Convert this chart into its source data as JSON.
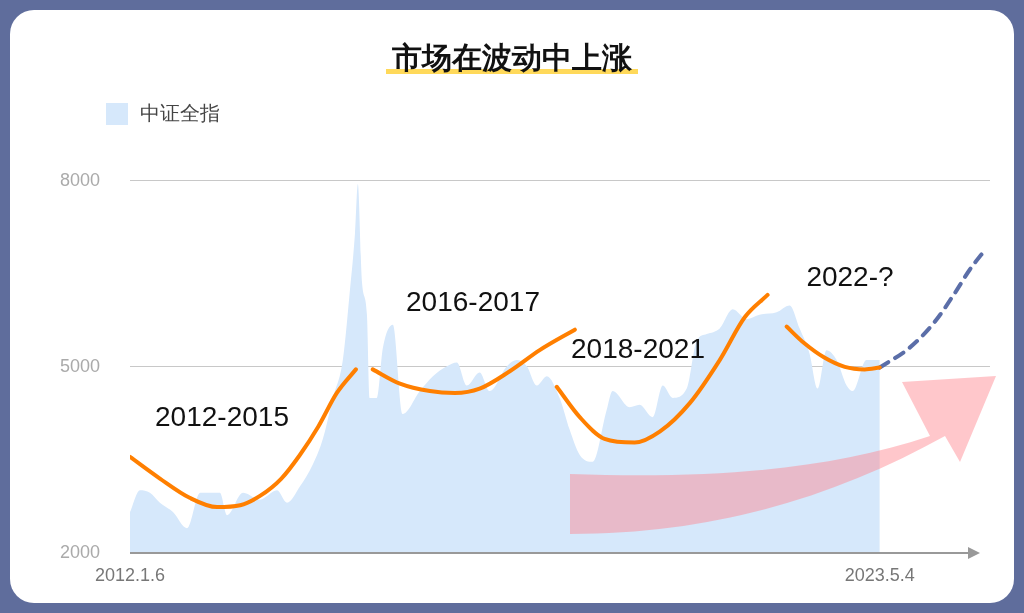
{
  "chart_data": {
    "type": "area",
    "title": "市场在波动中上涨",
    "xlim": [
      "2012-01-06",
      "2025-01"
    ],
    "xticks": [
      {
        "value": "2012-01-06",
        "label": "2012.1.6"
      },
      {
        "value": "2023-05-04",
        "label": "2023.5.4"
      }
    ],
    "ylim": [
      2000,
      8000
    ],
    "yticks": [
      2000,
      5000,
      8000
    ],
    "grid": "y",
    "legend": "top left",
    "marker": "none",
    "series": [
      {
        "name": "中证全指",
        "color": "#d6e8fb",
        "x": [
          "2012-01-06",
          "2012-03-01",
          "2012-04-25",
          "2012-06-19",
          "2012-08-30",
          "2012-11-15",
          "2013-01-27",
          "2013-05-16",
          "2013-06-24",
          "2013-09-20",
          "2013-12-23",
          "2014-03-27",
          "2014-05-21",
          "2014-07-31",
          "2014-10-11",
          "2014-12-05",
          "2015-01-29",
          "2015-03-25",
          "2015-05-03",
          "2015-05-31",
          "2015-06-16",
          "2015-07-08",
          "2015-08-05",
          "2015-08-21",
          "2015-09-28",
          "2015-11-01",
          "2015-12-26",
          "2016-02-19",
          "2016-05-23",
          "2016-08-03",
          "2016-10-19",
          "2016-12-13",
          "2017-02-06",
          "2017-04-18",
          "2017-06-12",
          "2017-09-15",
          "2017-11-08",
          "2018-01-03",
          "2018-02-27",
          "2018-04-23",
          "2018-07-03",
          "2018-08-27",
          "2018-10-22",
          "2019-01-02",
          "2019-03-19",
          "2019-04-21",
          "2019-07-24",
          "2019-09-17",
          "2019-11-28",
          "2020-01-23",
          "2020-03-18",
          "2020-06-03",
          "2020-07-28",
          "2020-09-22",
          "2020-12-02",
          "2021-02-12",
          "2021-04-30",
          "2021-07-10",
          "2021-10-12",
          "2021-12-23",
          "2022-02-16",
          "2022-04-11",
          "2022-05-26",
          "2022-07-14",
          "2022-09-08",
          "2022-11-02",
          "2022-12-05",
          "2023-02-20",
          "2023-05-04"
        ],
        "values": [
          2660,
          3010,
          2970,
          2810,
          2660,
          2400,
          2970,
          2970,
          2610,
          2970,
          2860,
          3010,
          2810,
          3070,
          3430,
          3840,
          4500,
          5110,
          6230,
          7150,
          7950,
          6390,
          5840,
          4500,
          4500,
          5310,
          5680,
          4240,
          4610,
          4850,
          5010,
          5070,
          4700,
          4910,
          4610,
          5010,
          5110,
          5010,
          4700,
          4850,
          4500,
          3990,
          3580,
          3470,
          4300,
          4610,
          4350,
          4390,
          4190,
          4700,
          4500,
          4650,
          5420,
          5530,
          5620,
          5930,
          5770,
          5840,
          5880,
          5990,
          5620,
          5220,
          4650,
          5270,
          5110,
          4700,
          4610,
          5110,
          5110
        ]
      },
      {
        "type": "line",
        "color": "#ff7f00",
        "x": [
          "2012-01-06",
          "2012-06-19",
          "2012-11-30",
          "2013-04-30",
          "2013-09-05",
          "2013-12-23",
          "2014-04-20",
          "2014-07-31",
          "2014-11-10",
          "2015-02-20",
          "2015-06-05"
        ],
        "values": [
          3550,
          3200,
          2890,
          2740,
          2770,
          2920,
          3200,
          3580,
          4040,
          4580,
          4960
        ]
      },
      {
        "type": "line",
        "color": "#ff7f00",
        "x": [
          "2015-09-06",
          "2016-02-03",
          "2016-07-17",
          "2016-12-02",
          "2017-04-18",
          "2017-10-01",
          "2018-03-15",
          "2018-09-25"
        ],
        "values": [
          4960,
          4730,
          4610,
          4580,
          4650,
          4930,
          5270,
          5600
        ]
      },
      {
        "type": "line",
        "color": "#ff7f00",
        "x": [
          "2018-06-17",
          "2018-10-22",
          "2019-03-08",
          "2019-08-21",
          "2020-01-08",
          "2020-06-21",
          "2020-12-02",
          "2021-04-19",
          "2021-08-23"
        ],
        "values": [
          4680,
          4190,
          3840,
          3780,
          3960,
          4420,
          5110,
          5800,
          6160
        ]
      },
      {
        "type": "line",
        "color": "#ff7f00",
        "x": [
          "2021-12-06",
          "2022-03-14",
          "2022-07-02",
          "2022-10-23",
          "2023-02-10",
          "2023-05-04"
        ],
        "values": [
          5650,
          5380,
          5150,
          5000,
          4960,
          4990
        ]
      },
      {
        "type": "line",
        "color": "#5b6ea8",
        "line_style": "dashed",
        "x": [
          "2023-05-04",
          "2023-10-16",
          "2024-03-03",
          "2024-06-21",
          "2024-09-12",
          "2024-12-03"
        ],
        "values": [
          4990,
          5310,
          5730,
          6190,
          6570,
          6880
        ]
      }
    ],
    "annotations": [
      "2012-2015",
      "2016-2017",
      "2018-2021",
      "2022-?"
    ]
  }
}
